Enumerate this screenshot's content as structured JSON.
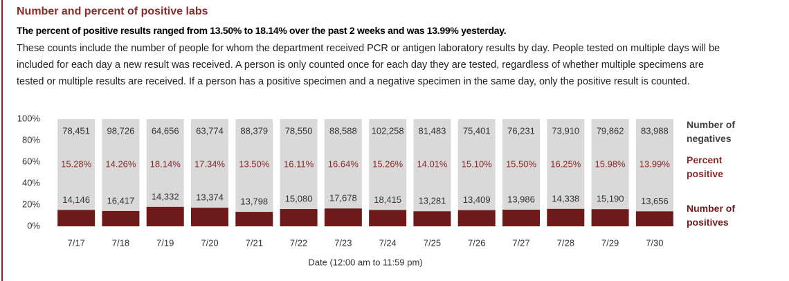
{
  "header": {
    "title": "Number and percent of positive labs",
    "subtitle": "The percent of positive results ranged from 13.50% to 18.14% over the past 2 weeks and was 13.99% yesterday.",
    "description": "These counts include the number of people for whom the department received PCR or antigen laboratory results by day. People tested on multiple days will be included for each day a new result was received. A person is only counted once for each day they are tested, regardless of whether multiple specimens are tested or multiple results are received. If a person has a positive specimen and a negative specimen in the same day, only the positive result is counted."
  },
  "chart_data": {
    "type": "stacked_percent_bar",
    "x_label": "Date (12:00 am to 11:59 pm)",
    "categories": [
      "7/17",
      "7/18",
      "7/19",
      "7/20",
      "7/21",
      "7/22",
      "7/23",
      "7/24",
      "7/25",
      "7/26",
      "7/27",
      "7/28",
      "7/29",
      "7/30"
    ],
    "ylim": [
      0,
      100
    ],
    "yticks": [
      {
        "value": 0,
        "label": "0%"
      },
      {
        "value": 20,
        "label": "20%"
      },
      {
        "value": 40,
        "label": "40%"
      },
      {
        "value": 60,
        "label": "60%"
      },
      {
        "value": 80,
        "label": "80%"
      },
      {
        "value": 100,
        "label": "100%"
      }
    ],
    "series": [
      {
        "name": "Number of positives",
        "color": "#6e1a1a",
        "values": [
          14146,
          16417,
          14332,
          13374,
          13798,
          15080,
          17678,
          18415,
          13281,
          13409,
          13986,
          14338,
          15190,
          13656
        ],
        "value_labels": [
          "14,146",
          "16,417",
          "14,332",
          "13,374",
          "13,798",
          "15,080",
          "17,678",
          "18,415",
          "13,281",
          "13,409",
          "13,986",
          "14,338",
          "15,190",
          "13,656"
        ]
      },
      {
        "name": "Number of negatives",
        "color": "#d9d9d9",
        "values": [
          78451,
          98726,
          64656,
          63774,
          88379,
          78550,
          88588,
          102258,
          81483,
          75401,
          76231,
          73910,
          79862,
          83988
        ],
        "value_labels": [
          "78,451",
          "98,726",
          "64,656",
          "63,774",
          "88,379",
          "78,550",
          "88,588",
          "102,258",
          "81,483",
          "75,401",
          "76,231",
          "73,910",
          "79,862",
          "83,988"
        ]
      },
      {
        "name": "Percent positive",
        "color": "#8b2a2a",
        "values": [
          15.28,
          14.26,
          18.14,
          17.34,
          13.5,
          16.11,
          16.64,
          15.26,
          14.01,
          15.1,
          15.5,
          16.25,
          15.98,
          13.99
        ],
        "value_labels": [
          "15.28%",
          "14.26%",
          "18.14%",
          "17.34%",
          "13.50%",
          "16.11%",
          "16.64%",
          "15.26%",
          "14.01%",
          "15.10%",
          "15.50%",
          "16.25%",
          "15.98%",
          "13.99%"
        ]
      }
    ]
  }
}
